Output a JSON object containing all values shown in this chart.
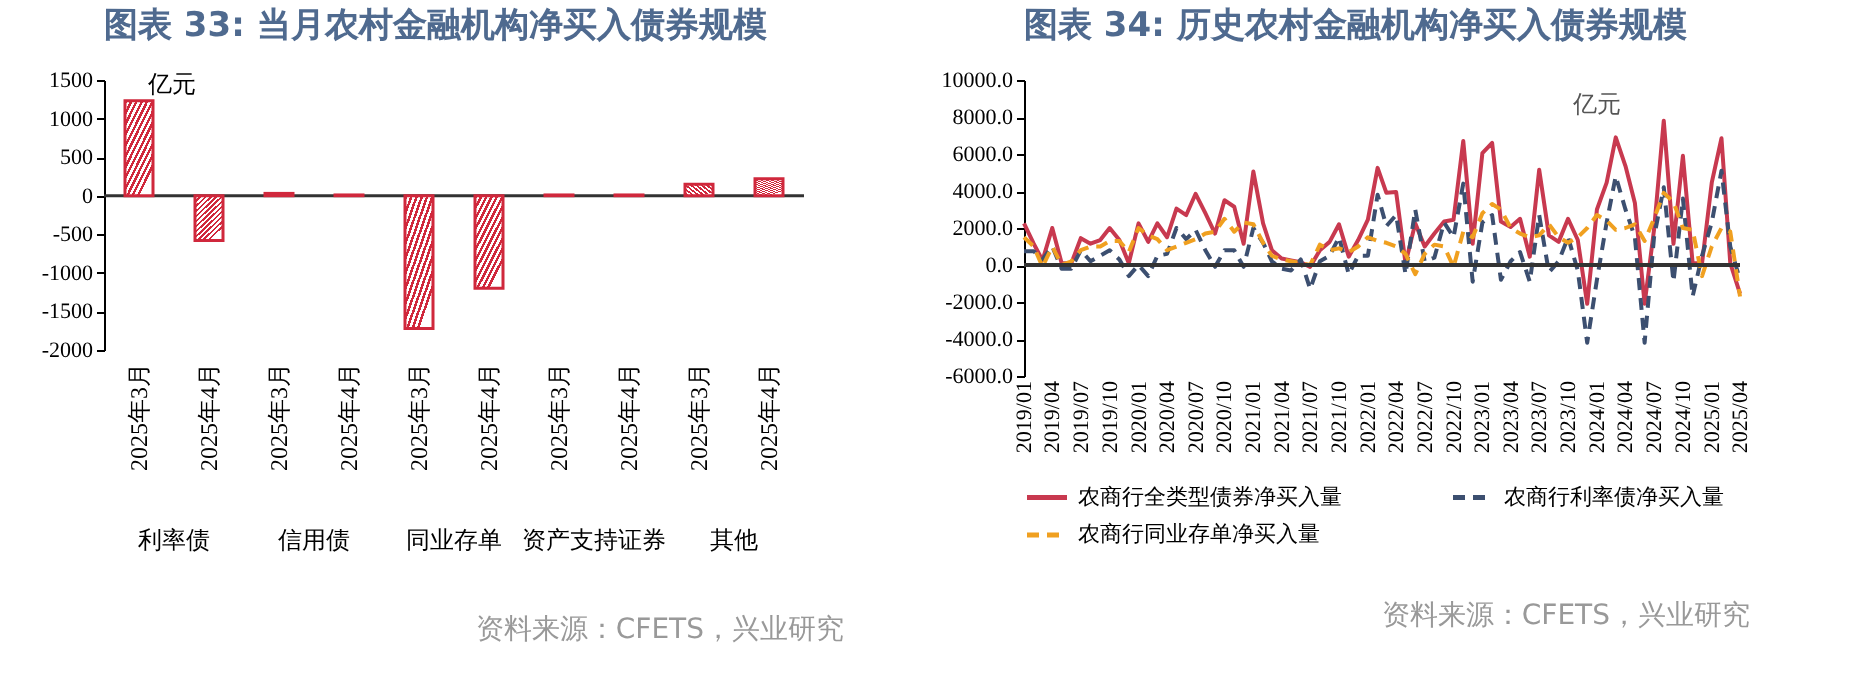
{
  "chart_data": [
    {
      "type": "bar",
      "title": "图表 33: 当月农村金融机构净买入债券规模",
      "categories": [
        "2025年3月",
        "2025年4月",
        "2025年3月",
        "2025年4月",
        "2025年3月",
        "2025年4月",
        "2025年3月",
        "2025年4月",
        "2025年3月",
        "2025年4月"
      ],
      "values": [
        1230,
        -580,
        30,
        10,
        -1720,
        -1200,
        10,
        10,
        150,
        220
      ],
      "color": "#d0283c",
      "ylim": [
        -2000,
        1500
      ],
      "yticks": [
        -2000,
        -1500,
        -1000,
        -500,
        0,
        500,
        1000,
        1500
      ],
      "annotations": [
        "亿元",
        "利率债",
        "信用债",
        "同业存单",
        "资产支持证券",
        "其他",
        "资料来源：CFETS，兴业研究"
      ],
      "ref_lines": [
        {
          "axis": "y",
          "value": 0
        }
      ]
    },
    {
      "type": "line",
      "title": "图表 34: 历史农村金融机构净买入债券规模",
      "x": [
        "2019-01",
        "2019-02",
        "2019-03",
        "2019-04",
        "2019-05",
        "2019-06",
        "2019-07",
        "2019-08",
        "2019-09",
        "2019-10",
        "2019-11",
        "2019-12",
        "2020-01",
        "2020-02",
        "2020-03",
        "2020-04",
        "2020-05",
        "2020-06",
        "2020-07",
        "2020-08",
        "2020-09",
        "2020-10",
        "2020-11",
        "2020-12",
        "2021-01",
        "2021-02",
        "2021-03",
        "2021-04",
        "2021-05",
        "2021-06",
        "2021-07",
        "2021-08",
        "2021-09",
        "2021-10",
        "2021-11",
        "2021-12",
        "2022-01",
        "2022-02",
        "2022-03",
        "2022-04",
        "2022-05",
        "2022-06",
        "2022-07",
        "2022-08",
        "2022-09",
        "2022-10",
        "2022-11",
        "2022-12",
        "2023-01",
        "2023-02",
        "2023-03",
        "2023-04",
        "2023-05",
        "2023-06",
        "2023-07",
        "2023-08",
        "2023-09",
        "2023-10",
        "2023-11",
        "2023-12",
        "2024-01",
        "2024-02",
        "2024-03",
        "2024-04",
        "2024-05",
        "2024-06",
        "2024-07",
        "2024-08",
        "2024-09",
        "2024-10",
        "2024-11",
        "2024-12",
        "2025-01",
        "2025-02",
        "2025-03",
        "2025-04"
      ],
      "xlim": [
        "2019-01",
        "2025-04"
      ],
      "xticks": [
        {
          "value": "2019-01",
          "label": "2019/01"
        },
        {
          "value": "2019-04",
          "label": "2019/04"
        },
        {
          "value": "2019-07",
          "label": "2019/07"
        },
        {
          "value": "2019-10",
          "label": "2019/10"
        },
        {
          "value": "2020-01",
          "label": "2020/01"
        },
        {
          "value": "2020-04",
          "label": "2020/04"
        },
        {
          "value": "2020-07",
          "label": "2020/07"
        },
        {
          "value": "2020-10",
          "label": "2020/10"
        },
        {
          "value": "2021-01",
          "label": "2021/01"
        },
        {
          "value": "2021-04",
          "label": "2021/04"
        },
        {
          "value": "2021-07",
          "label": "2021/07"
        },
        {
          "value": "2021-10",
          "label": "2021/10"
        },
        {
          "value": "2022-01",
          "label": "2022/01"
        },
        {
          "value": "2022-04",
          "label": "2022/04"
        },
        {
          "value": "2022-07",
          "label": "2022/07"
        },
        {
          "value": "2022-10",
          "label": "2022/10"
        },
        {
          "value": "2023-01",
          "label": "2023/01"
        },
        {
          "value": "2023-04",
          "label": "2023/04"
        },
        {
          "value": "2023-07",
          "label": "2023/07"
        },
        {
          "value": "2023-10",
          "label": "2023/10"
        },
        {
          "value": "2024-01",
          "label": "2024/01"
        },
        {
          "value": "2024-04",
          "label": "2024/04"
        },
        {
          "value": "2024-07",
          "label": "2024/07"
        },
        {
          "value": "2024-10",
          "label": "2024/10"
        },
        {
          "value": "2025-01",
          "label": "2025/01"
        },
        {
          "value": "2025-04",
          "label": "2025/04"
        }
      ],
      "ylim": [
        -6000,
        10000
      ],
      "yticks": [
        {
          "value": -6000,
          "label": "-6000.0"
        },
        {
          "value": -4000,
          "label": "-4000.0"
        },
        {
          "value": -2000,
          "label": "-2000.0"
        },
        {
          "value": 0,
          "label": "0.0"
        },
        {
          "value": 2000,
          "label": "2000.0"
        },
        {
          "value": 4000,
          "label": "4000.0"
        },
        {
          "value": 6000,
          "label": "6000.0"
        },
        {
          "value": 8000,
          "label": "8000.0"
        },
        {
          "value": 10000,
          "label": "10000.0"
        }
      ],
      "legend": "bottom",
      "annotations": [
        "亿元",
        "资料来源：CFETS，兴业研究"
      ],
      "ref_lines": [
        {
          "axis": "y",
          "value": 0
        }
      ],
      "series": [
        {
          "name": "农商行全类型债券净买入量",
          "color": "#c8394f",
          "line_style": "solid",
          "values": [
            2250,
            1150,
            250,
            2000,
            100,
            100,
            1450,
            1150,
            1350,
            2000,
            1350,
            100,
            2250,
            1250,
            2250,
            1500,
            3050,
            2700,
            3850,
            2800,
            1700,
            3500,
            3150,
            1150,
            5050,
            2250,
            800,
            350,
            250,
            150,
            -100,
            800,
            1250,
            2200,
            450,
            1350,
            2450,
            5250,
            3900,
            3950,
            100,
            2250,
            1000,
            1700,
            2350,
            2450,
            6700,
            1150,
            6050,
            6600,
            2350,
            2050,
            2500,
            450,
            5150,
            1600,
            1250,
            2500,
            1350,
            -2100,
            3000,
            4450,
            6900,
            5350,
            3350,
            -2100,
            1900,
            7800,
            1150,
            5900,
            100,
            100,
            4450,
            6850,
            100,
            -1550
          ]
        },
        {
          "name": "农商行利率债净买入量",
          "color": "#3c4f70",
          "line_style": "dashed",
          "values": [
            750,
            750,
            300,
            1000,
            -200,
            -200,
            800,
            200,
            500,
            800,
            300,
            -600,
            0,
            -600,
            500,
            600,
            2000,
            1400,
            1900,
            800,
            -100,
            800,
            800,
            -100,
            2000,
            1200,
            200,
            -200,
            -300,
            300,
            -1300,
            200,
            500,
            1500,
            -500,
            500,
            500,
            3800,
            2100,
            2700,
            -500,
            3000,
            200,
            400,
            2300,
            1500,
            4400,
            -900,
            2300,
            2700,
            -800,
            200,
            700,
            -900,
            2700,
            -400,
            200,
            1500,
            -300,
            -4200,
            -800,
            2300,
            4800,
            3000,
            1500,
            -4200,
            1500,
            4200,
            -900,
            3600,
            -1700,
            500,
            2300,
            5100,
            1000,
            -800
          ]
        },
        {
          "name": "农商行同业存单净买入量",
          "color": "#f0a020",
          "line_style": "dashed",
          "values": [
            1500,
            1000,
            -100,
            1000,
            0,
            200,
            800,
            1000,
            1000,
            1300,
            1300,
            700,
            2000,
            1600,
            1400,
            800,
            1000,
            1200,
            1400,
            1700,
            1800,
            2500,
            1800,
            2300,
            2200,
            1200,
            500,
            300,
            200,
            100,
            0,
            1100,
            800,
            900,
            700,
            1000,
            1500,
            1300,
            1200,
            1000,
            600,
            -500,
            600,
            1100,
            1000,
            -100,
            1800,
            1500,
            2800,
            3300,
            3000,
            2000,
            1700,
            1500,
            1600,
            2200,
            1500,
            1200,
            1500,
            2000,
            2700,
            2400,
            1900,
            2000,
            2200,
            1300,
            2500,
            3900,
            3400,
            2000,
            1900,
            -600,
            1000,
            2000,
            1800,
            -1700
          ]
        }
      ]
    }
  ]
}
